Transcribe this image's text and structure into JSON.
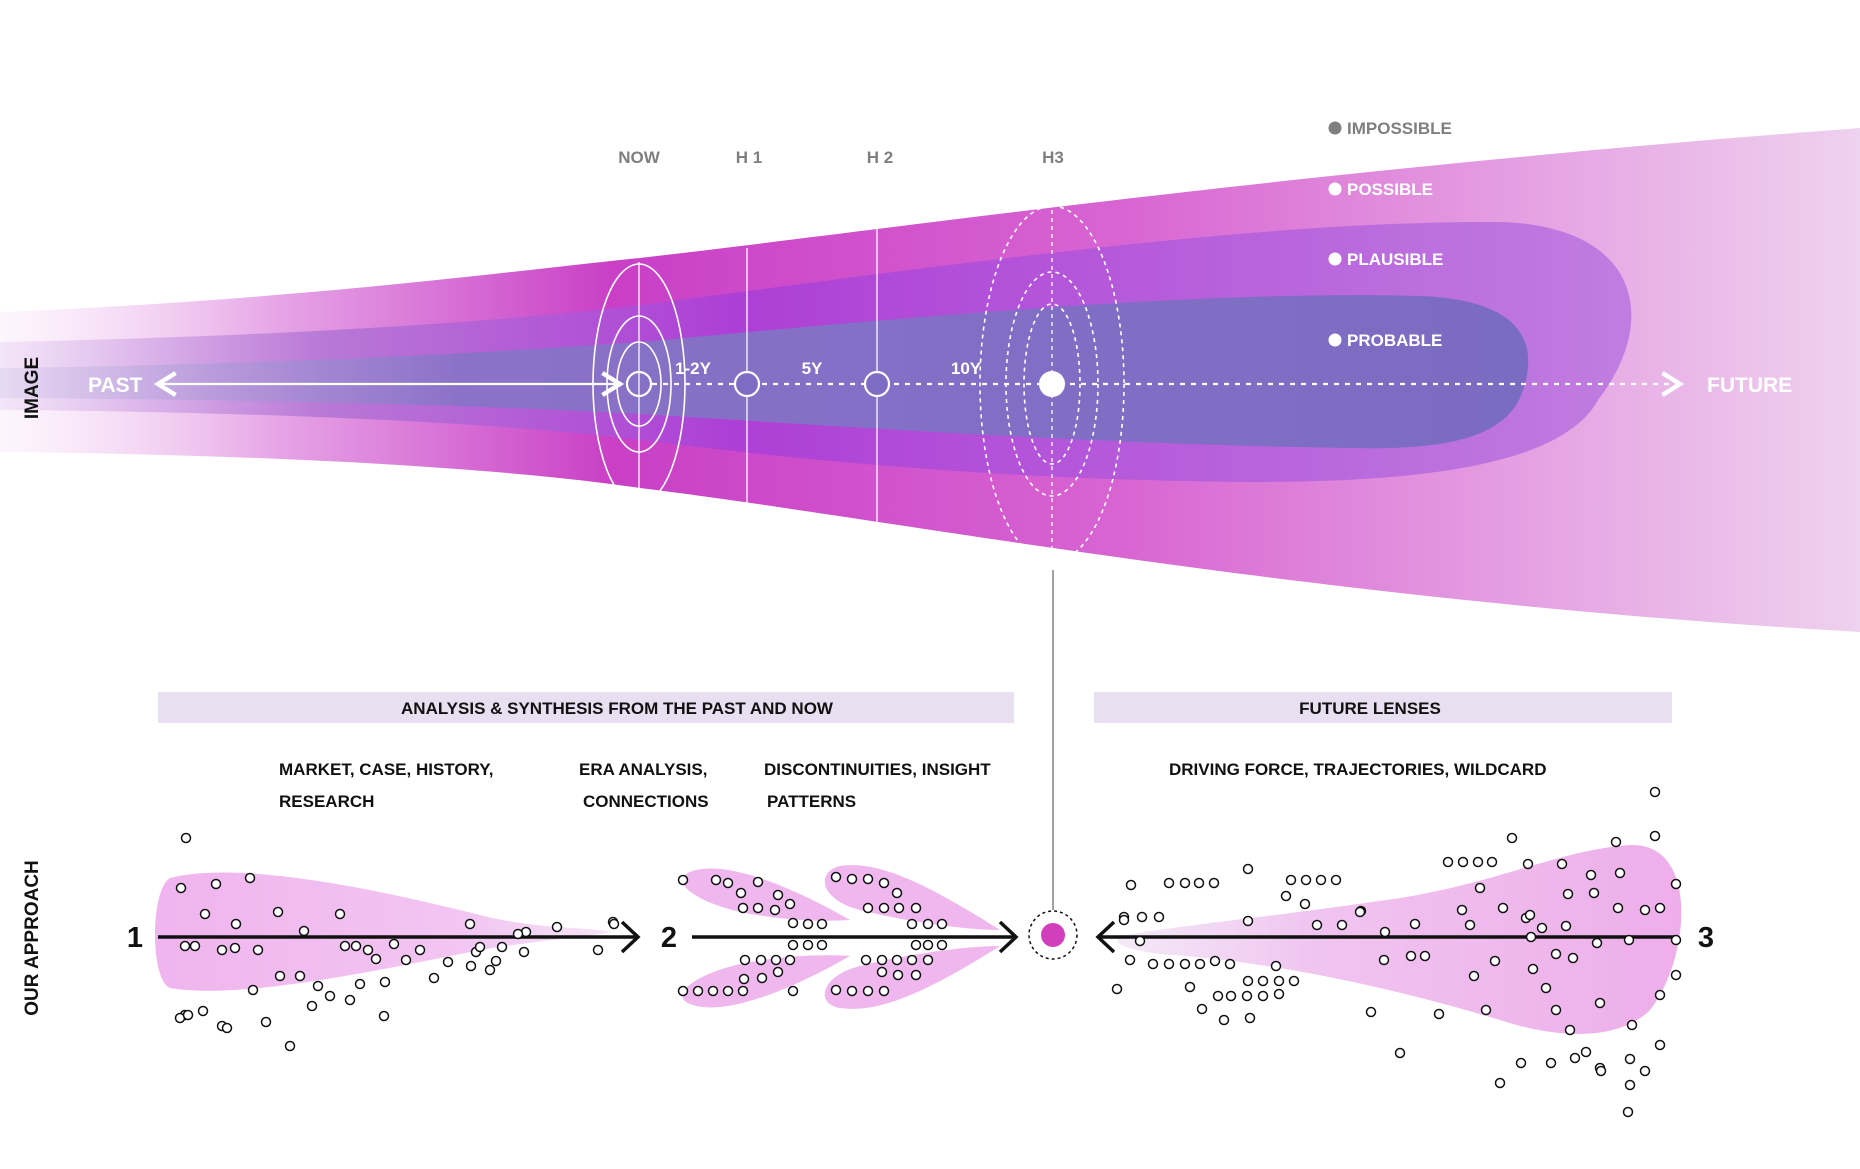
{
  "colors": {
    "possible": "#d45fd0",
    "plausible": "#b24ad8",
    "probable": "#7a6cc2",
    "bar": "#e8e0f0",
    "blob": "#f0b8f0",
    "accent": "#d23fbd",
    "label_gray": "#7f7f7f"
  },
  "sections": {
    "image": "IMAGE",
    "our_approach": "OUR APPROACH"
  },
  "timeline": {
    "past": "PAST",
    "future": "FUTURE",
    "markers": [
      "NOW",
      "H 1",
      "H 2",
      "H3"
    ],
    "intervals": [
      "1-2Y",
      "5Y",
      "10Y"
    ]
  },
  "legend": {
    "impossible": "IMPOSSIBLE",
    "possible": "POSSIBLE",
    "plausible": "PLAUSIBLE",
    "probable": "PROBABLE"
  },
  "approach": {
    "left_bar": "ANALYSIS & SYNTHESIS FROM THE PAST AND NOW",
    "right_bar": "FUTURE LENSES",
    "step1_line1": "MARKET, CASE, HISTORY,",
    "step1_line2": "RESEARCH",
    "step2_line1": "ERA ANALYSIS,",
    "step2_line2": "CONNECTIONS",
    "step2b_line1": "DISCONTINUITIES, INSIGHT",
    "step2b_line2": "PATTERNS",
    "step3_line1": "DRIVING FORCE, TRAJECTORIES, WILDCARD",
    "numbers": [
      "1",
      "2",
      "3"
    ]
  }
}
